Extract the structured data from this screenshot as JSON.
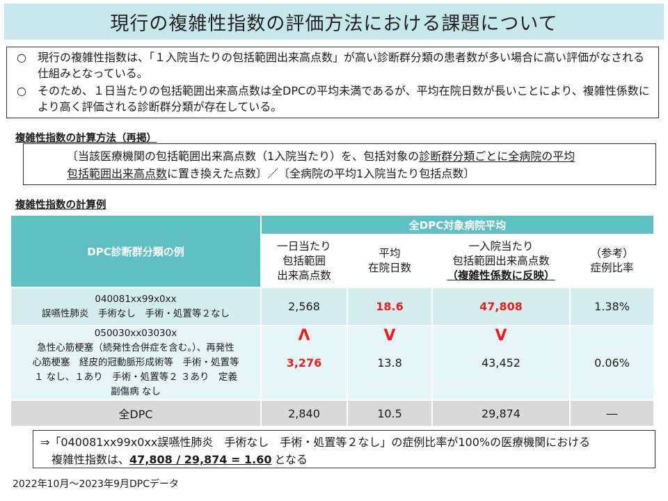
{
  "title": "現行の複雑性指数の評価方法における課題について",
  "summary": {
    "bullet_mark": "○",
    "bullets": [
      "現行の複雑性指数は、「１入院当たりの包括範囲出来高点数」が高い診断群分類の患者数が多い場合に高い評価がなされる仕組みとなっている。",
      "そのため、１日当たりの包括範囲出来高点数は全DPCの平均未満であるが、平均在院日数が長いことにより、複雑性係数により高く評価される診断群分類が存在している。"
    ]
  },
  "method": {
    "heading": "複雑性指数の計算方法（再掲）",
    "line1_a": "〔当該医療機関の包括範囲出来高点数（1入院当たり）を、包括対象の",
    "line1_b": "診断群分類ごとに全病院の平均",
    "line2_a": "包括範囲出来高点数",
    "line2_b": "に置き換えた点数〕／〔全病院の平均1入院当たり包括点数〕"
  },
  "example": {
    "heading": "複雑性指数の計算例",
    "table": {
      "group_header": "全DPC対象病院平均",
      "col0_header": "DPC診断群分類の例",
      "col1_header": [
        "一日当たり",
        "包括範囲",
        "出来高点数"
      ],
      "col2_header": [
        "平均",
        "在院日数"
      ],
      "col3_header": [
        "一入院当たり",
        "包括範囲出来高点数",
        "（複雑性係数に反映）"
      ],
      "col4_header": [
        "（参考）",
        "症例比率"
      ],
      "rows": [
        {
          "name_lines": [
            "040081xx99x0xx",
            "誤嚥性肺炎　手術なし　手術・処置等２なし"
          ],
          "points_per_day": "2,568",
          "avg_los": "18.6",
          "points_per_admission": "47,808",
          "case_ratio": "1.38%"
        },
        {
          "name_lines": [
            "050030xx03030x",
            "急性心筋梗塞（続発性合併症を含む。）、再発性",
            "心筋梗塞　経皮的冠動脈形成術等　手術・処置等",
            "１ なし、１あり　手術・処置等２ ３あり　定義",
            "副傷病 なし"
          ],
          "points_per_day": "3,276",
          "avg_los": "13.8",
          "points_per_admission": "43,452",
          "case_ratio": "0.06%"
        },
        {
          "name_lines": [
            "全DPC"
          ],
          "points_per_day": "2,840",
          "avg_los": "10.5",
          "points_per_admission": "29,874",
          "case_ratio": "―"
        }
      ],
      "comparison_arrows": {
        "points_per_day": "Λ",
        "avg_los": "V",
        "points_per_admission": "V"
      }
    }
  },
  "result": {
    "line1": "⇒「040081xx99x0xx誤嚥性肺炎　手術なし　手術・処置等２なし」の症例比率が100%の医療機関における",
    "line2_a": "複雑性指数は、",
    "line2_calc": "47,808 / 29,874 = 1.60",
    "line2_b": "となる"
  },
  "source": "2022年10月～2023年9月DPCデータ",
  "colors": {
    "title_bg": "#c7e8ea",
    "table_header": "#5fc0c3",
    "row_primary": "#d4eef0",
    "row_secondary": "#e6f6f7",
    "row_total": "#d9d9d9",
    "highlight": "#ee1c1c"
  }
}
